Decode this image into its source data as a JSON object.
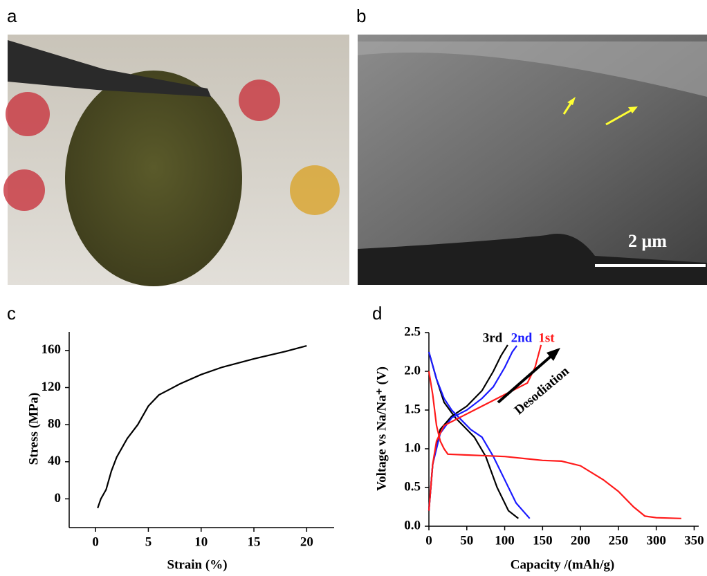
{
  "panel_labels": [
    "a",
    "b",
    "c",
    "d"
  ],
  "scale_bar": "2 μm",
  "chart_data": [
    {
      "type": "line",
      "xlabel": "Strain (%)",
      "ylabel": "Stress (MPa)",
      "xlim": [
        -2.5,
        22.6
      ],
      "ylim": [
        -31,
        180
      ],
      "xticks": [
        0,
        5,
        10,
        15,
        20
      ],
      "yticks": [
        0,
        40,
        80,
        120,
        160
      ],
      "series": [
        {
          "color": "#000000",
          "x": [
            0.2,
            0.5,
            1,
            1.5,
            2,
            3,
            4,
            5,
            6,
            7,
            8,
            10,
            12,
            15,
            18,
            20
          ],
          "values": [
            -10,
            0,
            10,
            30,
            45,
            65,
            80,
            100,
            112,
            118,
            124,
            134,
            142,
            151,
            159,
            165
          ]
        }
      ]
    },
    {
      "type": "line",
      "xlabel": "Capacity /(mAh/g)",
      "ylabel": "Voltage vs Na/Na⁺ (V)",
      "annotation": "Desodiation",
      "xlim": [
        0,
        356
      ],
      "ylim": [
        0,
        2.5
      ],
      "xticks": [
        0,
        50,
        100,
        150,
        200,
        250,
        300,
        350
      ],
      "yticks": [
        {
          "value": 0,
          "label": "0.0"
        },
        0.5,
        {
          "value": 1,
          "label": "1.0"
        },
        1.5,
        {
          "value": 2,
          "label": "2.0"
        },
        2.5
      ],
      "series": [
        {
          "name": "3rd",
          "color": "#000000",
          "x": [
            0,
            10,
            20,
            35,
            50,
            60,
            75,
            90,
            105,
            118,
            null,
            0,
            5,
            15,
            30,
            50,
            70,
            85,
            95,
            104
          ],
          "values": [
            2.25,
            1.9,
            1.6,
            1.4,
            1.25,
            1.15,
            0.9,
            0.5,
            0.2,
            0.1,
            null,
            0.2,
            0.8,
            1.25,
            1.42,
            1.55,
            1.75,
            2.0,
            2.2,
            2.34
          ]
        },
        {
          "name": "2nd",
          "color": "#1a1aff",
          "x": [
            0,
            10,
            20,
            30,
            40,
            55,
            70,
            85,
            100,
            115,
            133,
            null,
            0,
            5,
            15,
            30,
            50,
            70,
            85,
            100,
            110,
            116
          ],
          "values": [
            2.25,
            1.9,
            1.65,
            1.5,
            1.4,
            1.25,
            1.15,
            0.9,
            0.6,
            0.3,
            0.1,
            null,
            0.2,
            0.8,
            1.2,
            1.4,
            1.5,
            1.65,
            1.8,
            2.05,
            2.25,
            2.33
          ]
        },
        {
          "name": "1st",
          "color": "#ff1a1a",
          "x": [
            0,
            5,
            10,
            15,
            20,
            25,
            50,
            100,
            150,
            175,
            200,
            230,
            250,
            270,
            285,
            300,
            333,
            null,
            0,
            5,
            10,
            20,
            40,
            60,
            100,
            130,
            140,
            148
          ],
          "values": [
            2.0,
            1.7,
            1.3,
            1.1,
            1.0,
            0.93,
            0.92,
            0.9,
            0.85,
            0.84,
            0.78,
            0.6,
            0.45,
            0.25,
            0.13,
            0.11,
            0.1,
            null,
            0.2,
            0.8,
            1.1,
            1.3,
            1.4,
            1.5,
            1.7,
            1.85,
            2.05,
            2.34
          ]
        }
      ]
    }
  ]
}
